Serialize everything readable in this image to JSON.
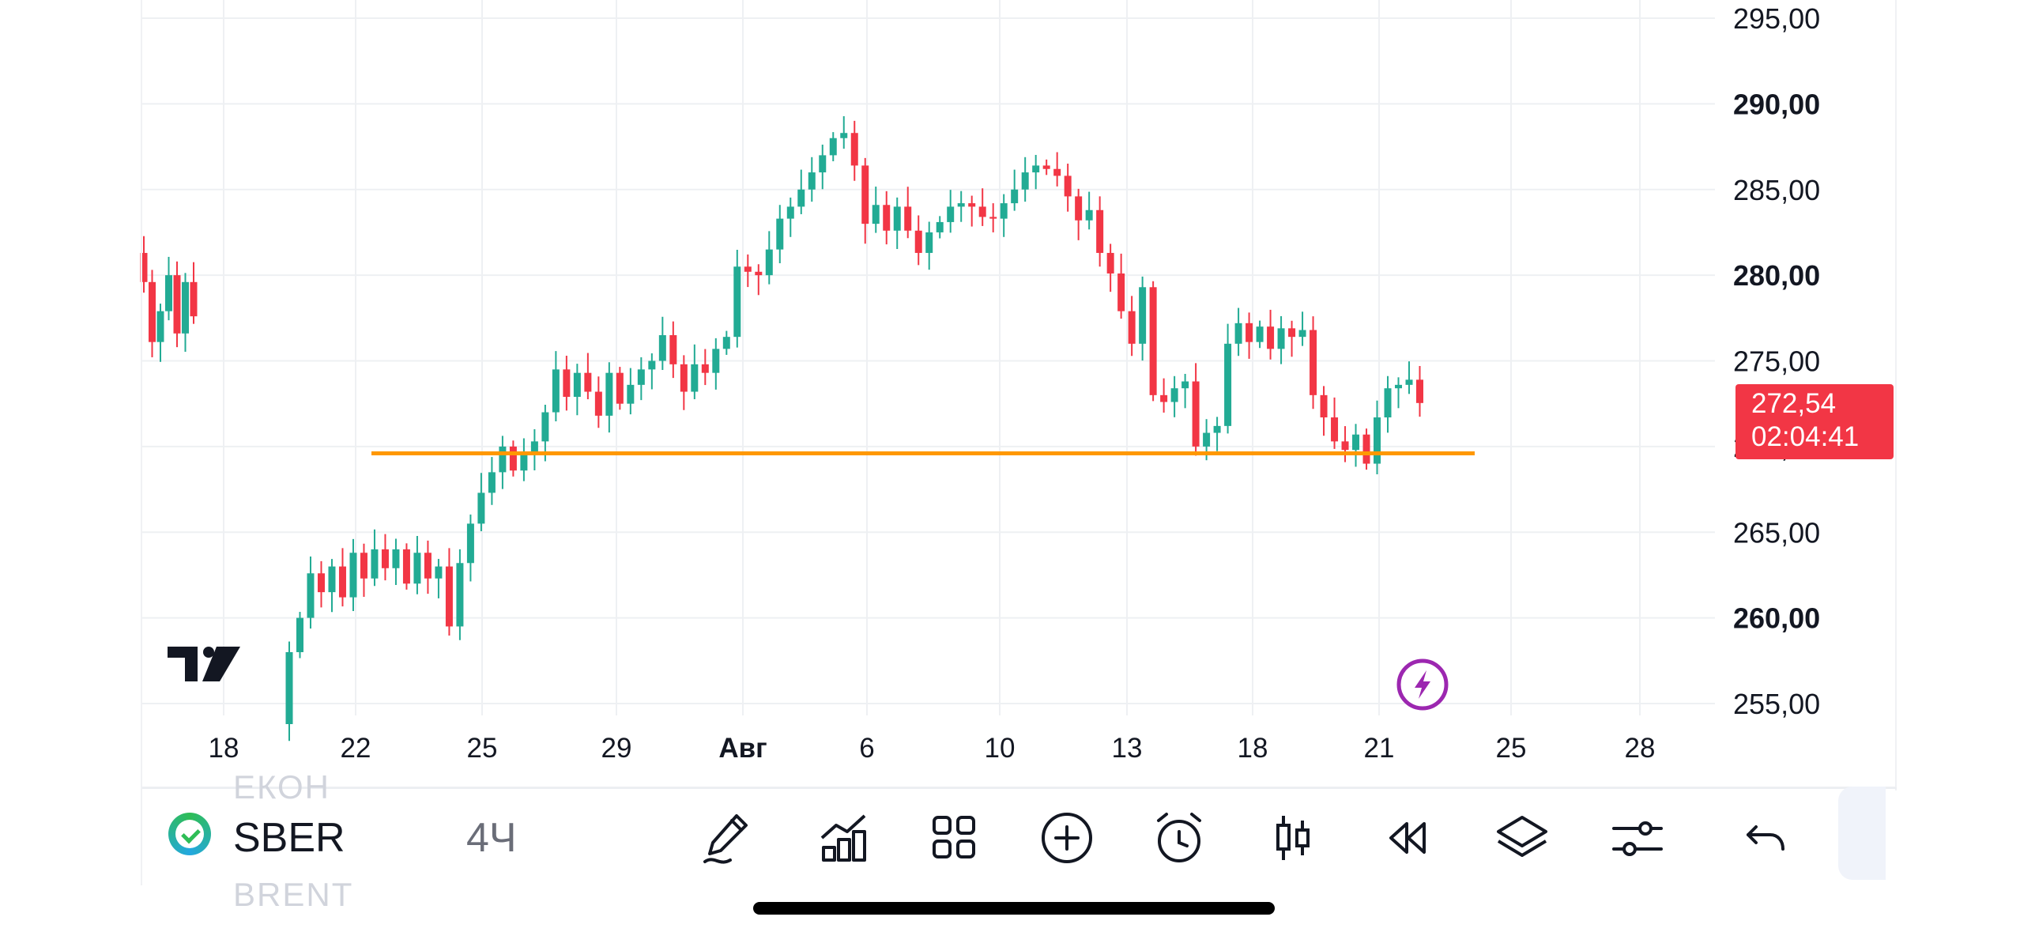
{
  "chart_data": {
    "type": "candlestick",
    "symbol": "SBER",
    "interval": "4Ч",
    "current_price": "272,54",
    "countdown": "02:04:41",
    "support_level": 269.6,
    "y_ticks": [
      {
        "value": 295,
        "label": "295,00",
        "bold": false
      },
      {
        "value": 290,
        "label": "290,00",
        "bold": true
      },
      {
        "value": 285,
        "label": "285,00",
        "bold": false
      },
      {
        "value": 280,
        "label": "280,00",
        "bold": true
      },
      {
        "value": 275,
        "label": "275,00",
        "bold": false
      },
      {
        "value": 270,
        "label": "270,00",
        "bold": false
      },
      {
        "value": 265,
        "label": "265,00",
        "bold": false
      },
      {
        "value": 260,
        "label": "260,00",
        "bold": true
      },
      {
        "value": 255,
        "label": "255,00",
        "bold": false
      }
    ],
    "ylim": [
      254,
      296
    ],
    "x_ticks": [
      {
        "label": "18",
        "bold": false
      },
      {
        "label": "22",
        "bold": false
      },
      {
        "label": "25",
        "bold": false
      },
      {
        "label": "29",
        "bold": false
      },
      {
        "label": "Авг",
        "bold": true
      },
      {
        "label": "6",
        "bold": false
      },
      {
        "label": "10",
        "bold": false
      },
      {
        "label": "13",
        "bold": false
      },
      {
        "label": "18",
        "bold": false
      },
      {
        "label": "21",
        "bold": false
      },
      {
        "label": "25",
        "bold": false
      },
      {
        "label": "28",
        "bold": false
      }
    ],
    "segments": [
      [
        [
          "o",
          281.3
        ],
        [
          "c",
          281.5
        ],
        [
          "h",
          282.4
        ],
        [
          "l",
          276.8
        ]
      ],
      [
        [
          "o",
          281.5
        ],
        [
          "c",
          279.6
        ],
        [
          "h",
          282.6
        ],
        [
          "l",
          277.0
        ]
      ],
      [
        [
          "o",
          279.6
        ],
        [
          "c",
          276.0
        ],
        [
          "h",
          280.3
        ],
        [
          "l",
          274.8
        ]
      ]
    ],
    "path": [
      281.3,
      279.6,
      276.1,
      277.9,
      280.0,
      276.6,
      279.6,
      277.6,
      253.8,
      258.0,
      260.0,
      262.6,
      261.5,
      263.0,
      261.2,
      263.8,
      262.3,
      264.0,
      262.9,
      264.0,
      262.0,
      263.8,
      262.3,
      263.0,
      259.5,
      263.2,
      265.5,
      267.3,
      268.5,
      270.0,
      268.6,
      269.5,
      270.3,
      272.0,
      274.5,
      272.9,
      274.3,
      273.2,
      271.8,
      274.3,
      272.5,
      273.6,
      274.5,
      275.0,
      276.5,
      274.8,
      273.2,
      274.8,
      274.3,
      275.7,
      276.4,
      280.5,
      280.2,
      280.0,
      281.5,
      283.3,
      284.0,
      285.0,
      286.0,
      287.0,
      288.0,
      288.3,
      286.4,
      283.0,
      284.1,
      282.6,
      284.0,
      282.6,
      281.3,
      282.5,
      283.1,
      284.0,
      284.2,
      284.0,
      283.4,
      283.3,
      284.2,
      285.0,
      286.0,
      286.4,
      286.2,
      285.8,
      284.6,
      283.2,
      283.8,
      281.3,
      280.1,
      277.9,
      276.0,
      279.3,
      273.0,
      272.6,
      273.4,
      273.8,
      270.0,
      270.8,
      271.2,
      276.0,
      277.2,
      276.1,
      277.0,
      275.7,
      276.9,
      276.4,
      276.8,
      273.0,
      271.7,
      270.3,
      269.8,
      270.7,
      269.0,
      271.7,
      273.4,
      273.6,
      273.9,
      272.54
    ]
  },
  "toolbar": {
    "symbol": "SBER",
    "interval": "4Ч",
    "ghost_top": "ЕКОН",
    "ghost_bottom": "BRENT",
    "icons": [
      "pen-icon",
      "indicators-icon",
      "templates-icon",
      "add-icon",
      "alarm-icon",
      "candles-icon",
      "replay-icon",
      "layers-icon",
      "settings-icon",
      "undo-icon"
    ]
  },
  "colors": {
    "up": "#22ab94",
    "down": "#f23645",
    "support": "#ff9800",
    "grid": "#eef0f3",
    "alert_purple": "#9c27b0"
  }
}
